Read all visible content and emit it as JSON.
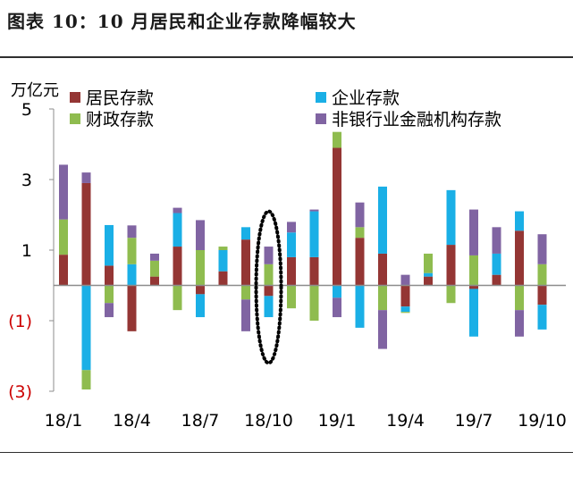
{
  "figure": {
    "title": "图表 10：10 月居民和企业存款降幅较大"
  },
  "chart_data": {
    "type": "bar",
    "stacked": true,
    "unit_label": "万亿元",
    "ylim": [
      -3,
      5
    ],
    "y_ticks": [
      {
        "value": 5,
        "label": "5",
        "color": "#000000"
      },
      {
        "value": 3,
        "label": "3",
        "color": "#000000"
      },
      {
        "value": 1,
        "label": "1",
        "color": "#000000"
      },
      {
        "value": -1,
        "label": "(1)",
        "color": "#cc0000"
      },
      {
        "value": -3,
        "label": "(3)",
        "color": "#cc0000"
      }
    ],
    "categories": [
      "18/1",
      "18/2",
      "18/3",
      "18/4",
      "18/5",
      "18/6",
      "18/7",
      "18/8",
      "18/9",
      "18/10",
      "18/11",
      "18/12",
      "19/1",
      "19/2",
      "19/3",
      "19/4",
      "19/5",
      "19/6",
      "19/7",
      "19/8",
      "19/9",
      "19/10"
    ],
    "x_tick_labels": [
      {
        "index": 0,
        "label": "18/1"
      },
      {
        "index": 3,
        "label": "18/4"
      },
      {
        "index": 6,
        "label": "18/7"
      },
      {
        "index": 9,
        "label": "18/10"
      },
      {
        "index": 12,
        "label": "19/1"
      },
      {
        "index": 15,
        "label": "19/4"
      },
      {
        "index": 18,
        "label": "19/7"
      },
      {
        "index": 21,
        "label": "19/10"
      }
    ],
    "series": [
      {
        "name": "居民存款",
        "color": "#943634",
        "values": [
          0.87,
          2.9,
          0.56,
          -1.3,
          0.25,
          1.1,
          -0.25,
          0.4,
          1.3,
          -0.3,
          0.8,
          0.8,
          3.9,
          1.35,
          0.9,
          -0.6,
          0.25,
          1.15,
          -0.1,
          0.3,
          1.55,
          -0.55
        ]
      },
      {
        "name": "企业存款",
        "color": "#1aafe6",
        "values": [
          0,
          -2.4,
          1.15,
          0.6,
          0,
          0.95,
          -0.65,
          0.6,
          0.35,
          -0.6,
          0.7,
          1.3,
          -0.35,
          -1.2,
          1.9,
          -0.15,
          0.1,
          1.55,
          -1.35,
          0.6,
          0.55,
          -0.7
        ]
      },
      {
        "name": "财政存款",
        "color": "#8fbc4f",
        "values": [
          1.0,
          -0.55,
          -0.5,
          0.75,
          0.45,
          -0.7,
          1.0,
          0.1,
          -0.4,
          0.6,
          -0.65,
          -1.0,
          0.45,
          0.3,
          -0.7,
          -0.03,
          0.55,
          -0.5,
          0.85,
          0,
          -0.7,
          0.6
        ]
      },
      {
        "name": "非银行业金融机构存款",
        "color": "#8064a2",
        "values": [
          1.55,
          0.3,
          -0.4,
          0.35,
          0.2,
          0.15,
          0.85,
          0,
          -0.9,
          0.5,
          0.3,
          0.05,
          -0.55,
          0.7,
          -1.1,
          0.3,
          0,
          0,
          1.3,
          0.75,
          -0.75,
          0.85
        ]
      }
    ],
    "legend": {
      "position": "top",
      "columns": 2
    },
    "annotation": {
      "shape": "dotted-ellipse",
      "category": "18/10"
    }
  }
}
